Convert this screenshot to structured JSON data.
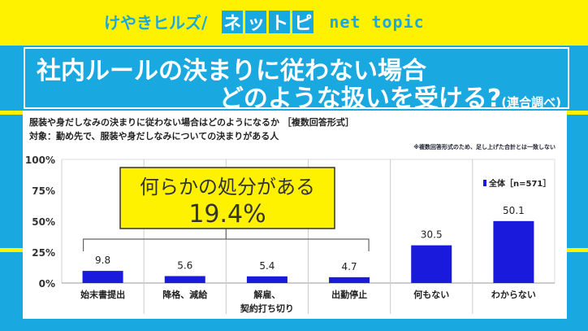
{
  "header": {
    "brand_kana": "けやきヒルズ/",
    "brand_boxes": [
      "ネ",
      "ッ",
      "ト",
      "ピ"
    ],
    "brand_en": "net topic"
  },
  "title": {
    "line1": "社内ルールの決まりに従わない場合",
    "line2": "どのような扱いを受ける?",
    "source": "(連合調べ)"
  },
  "subtitle": {
    "question": "服装や身だしなみの決まりに従わない場合はどのようになるか ［複数回答形式］",
    "target": "対象：勤め先で、服装や身だしなみについての決まりがある人",
    "note": "※複数回答形式のため、足し上げた合計とは一致しない"
  },
  "colors": {
    "bar": "#1a1adc",
    "callout": "#fff200",
    "band": "#1aa8e0",
    "yellow": "#fff200"
  },
  "chart_data": {
    "type": "bar",
    "categories": [
      "始末書提出",
      "降格、減給",
      "解雇、\n契約打ち切り",
      "出勤停止",
      "何もない",
      "わからない"
    ],
    "series": [
      {
        "name": "全体［n=571］",
        "values": [
          9.8,
          5.6,
          5.4,
          4.7,
          30.5,
          50.1
        ]
      }
    ],
    "value_labels": [
      "9.8",
      "5.6",
      "5.4",
      "4.7",
      "30.5",
      "50.1"
    ],
    "yticks": [
      "0%",
      "25%",
      "50%",
      "75%",
      "100%"
    ],
    "ylim": [
      0,
      100
    ],
    "legend": "top-right",
    "grid": "vertical category separators",
    "annotation": {
      "line1": "何らかの処分がある",
      "line2": "19.4%"
    }
  }
}
